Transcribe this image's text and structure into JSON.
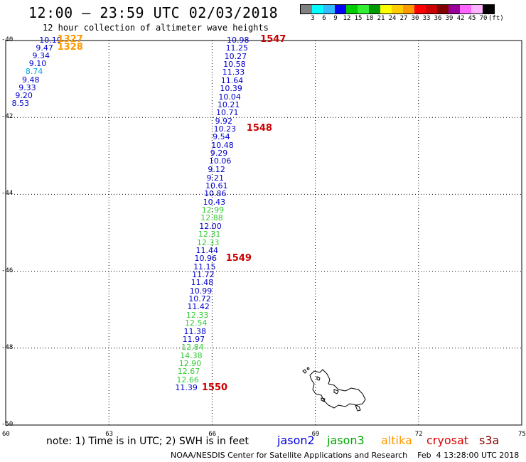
{
  "header": {
    "title": "12:00 — 23:59 UTC 02/03/2018",
    "subtitle": "12 hour collection of altimeter wave heights"
  },
  "scale": {
    "colors": [
      "#808080",
      "#00ffff",
      "#33bbff",
      "#0000ff",
      "#00cc00",
      "#33ee33",
      "#009900",
      "#ffff00",
      "#ffcc00",
      "#ff9900",
      "#ff0000",
      "#cc0000",
      "#800000",
      "#990099",
      "#ff66ff",
      "#ffb3ff",
      "#000000"
    ],
    "labels": [
      "3",
      "6",
      "9",
      "12",
      "15",
      "18",
      "21",
      "24",
      "27",
      "30",
      "33",
      "36",
      "39",
      "42",
      "45",
      "70",
      "(ft)"
    ]
  },
  "axes": {
    "lat_labels": [
      "-40",
      "-42",
      "-44",
      "-46",
      "-48",
      "-50"
    ],
    "lon_labels": [
      "60",
      "63",
      "66",
      "69",
      "72",
      "75"
    ]
  },
  "tracks": [
    {
      "sat": "jason2",
      "color": "#0000cc",
      "points": [
        {
          "lon": 61.1,
          "lat": -40.0,
          "v": "10.19"
        },
        {
          "lon": 61.0,
          "lat": -40.2,
          "v": "9.47"
        },
        {
          "lon": 60.9,
          "lat": -40.4,
          "v": "9.34"
        },
        {
          "lon": 60.8,
          "lat": -40.61,
          "v": "9.10"
        },
        {
          "lon": 60.7,
          "lat": -40.82,
          "v": "8.74",
          "c": "#00aadd"
        },
        {
          "lon": 60.6,
          "lat": -41.03,
          "v": "9.48"
        },
        {
          "lon": 60.5,
          "lat": -41.24,
          "v": "9.33"
        },
        {
          "lon": 60.4,
          "lat": -41.45,
          "v": "9.20"
        },
        {
          "lon": 60.3,
          "lat": -41.64,
          "v": "8.53"
        }
      ]
    },
    {
      "sat": "jason2",
      "color": "#0000cc",
      "points": [
        {
          "lon": 66.55,
          "lat": -40.0,
          "v": "10.98"
        },
        {
          "lon": 66.52,
          "lat": -40.21,
          "v": "11.25"
        },
        {
          "lon": 66.48,
          "lat": -40.42,
          "v": "10.27"
        },
        {
          "lon": 66.45,
          "lat": -40.63,
          "v": "10.58"
        },
        {
          "lon": 66.42,
          "lat": -40.84,
          "v": "11.33"
        },
        {
          "lon": 66.38,
          "lat": -41.05,
          "v": "11.64"
        },
        {
          "lon": 66.35,
          "lat": -41.26,
          "v": "10.39"
        },
        {
          "lon": 66.31,
          "lat": -41.47,
          "v": "10.04"
        },
        {
          "lon": 66.28,
          "lat": -41.68,
          "v": "10.21"
        },
        {
          "lon": 66.24,
          "lat": -41.89,
          "v": "10.71"
        },
        {
          "lon": 66.21,
          "lat": -42.1,
          "v": "9.92"
        },
        {
          "lon": 66.17,
          "lat": -42.31,
          "v": "10.23"
        },
        {
          "lon": 66.14,
          "lat": -42.52,
          "v": "9.54"
        },
        {
          "lon": 66.1,
          "lat": -42.73,
          "v": "10.48"
        },
        {
          "lon": 66.07,
          "lat": -42.94,
          "v": "9.29"
        },
        {
          "lon": 66.03,
          "lat": -43.15,
          "v": "10.06"
        },
        {
          "lon": 66.0,
          "lat": -43.37,
          "v": "9.12"
        },
        {
          "lon": 65.96,
          "lat": -43.58,
          "v": "9.21"
        },
        {
          "lon": 65.93,
          "lat": -43.79,
          "v": "10.61"
        },
        {
          "lon": 65.89,
          "lat": -44.0,
          "v": "10.86"
        },
        {
          "lon": 65.86,
          "lat": -44.21,
          "v": "10.43"
        },
        {
          "lon": 65.82,
          "lat": -44.42,
          "v": "12.99",
          "c": "#33cc33"
        },
        {
          "lon": 65.79,
          "lat": -44.63,
          "v": "12.88",
          "c": "#33cc33"
        },
        {
          "lon": 65.75,
          "lat": -44.84,
          "v": "12.00"
        },
        {
          "lon": 65.72,
          "lat": -45.05,
          "v": "12.31",
          "c": "#33cc33"
        },
        {
          "lon": 65.68,
          "lat": -45.26,
          "v": "12.33",
          "c": "#33cc33"
        },
        {
          "lon": 65.65,
          "lat": -45.47,
          "v": "11.44"
        },
        {
          "lon": 65.61,
          "lat": -45.68,
          "v": "10.96"
        },
        {
          "lon": 65.58,
          "lat": -45.89,
          "v": "11.15"
        },
        {
          "lon": 65.54,
          "lat": -46.1,
          "v": "11.72"
        },
        {
          "lon": 65.51,
          "lat": -46.31,
          "v": "11.48"
        },
        {
          "lon": 65.47,
          "lat": -46.52,
          "v": "10.99"
        },
        {
          "lon": 65.44,
          "lat": -46.73,
          "v": "10.72"
        },
        {
          "lon": 65.4,
          "lat": -46.94,
          "v": "11.42"
        },
        {
          "lon": 65.37,
          "lat": -47.15,
          "v": "12.33",
          "c": "#33cc33"
        },
        {
          "lon": 65.33,
          "lat": -47.36,
          "v": "12.54",
          "c": "#33cc33"
        },
        {
          "lon": 65.3,
          "lat": -47.57,
          "v": "11.38"
        },
        {
          "lon": 65.26,
          "lat": -47.78,
          "v": "11.97"
        },
        {
          "lon": 65.23,
          "lat": -47.99,
          "v": "12.84",
          "c": "#33cc33"
        },
        {
          "lon": 65.19,
          "lat": -48.2,
          "v": "14.38",
          "c": "#33cc33"
        },
        {
          "lon": 65.16,
          "lat": -48.41,
          "v": "12.90",
          "c": "#33cc33"
        },
        {
          "lon": 65.12,
          "lat": -48.62,
          "v": "12.67",
          "c": "#33cc33"
        },
        {
          "lon": 65.09,
          "lat": -48.83,
          "v": "12.66",
          "c": "#33cc33"
        },
        {
          "lon": 65.05,
          "lat": -49.04,
          "v": "11.39"
        }
      ]
    }
  ],
  "revs": [
    {
      "v": "1327",
      "lon": 61.5,
      "lat": -39.98,
      "c": "#ff9900"
    },
    {
      "v": "1328",
      "lon": 61.5,
      "lat": -40.18,
      "c": "#ff9900"
    },
    {
      "v": "1547",
      "lon": 67.4,
      "lat": -39.98,
      "c": "#cc0000"
    },
    {
      "v": "1548",
      "lon": 67.0,
      "lat": -42.3,
      "c": "#cc0000"
    },
    {
      "v": "1549",
      "lon": 66.4,
      "lat": -45.68,
      "c": "#cc0000"
    },
    {
      "v": "1550",
      "lon": 65.7,
      "lat": -49.03,
      "c": "#cc0000"
    }
  ],
  "note": "note: 1) Time is in UTC; 2) SWH is in feet",
  "satellites": [
    {
      "name": "jason2",
      "color": "#0000dd"
    },
    {
      "name": "jason3",
      "color": "#00aa00"
    },
    {
      "name": "altika",
      "color": "#ff9900"
    },
    {
      "name": "cryosat",
      "color": "#dd0000"
    },
    {
      "name": "s3a",
      "color": "#880000"
    }
  ],
  "footer": "NOAA/NESDIS Center for Satellite Applications and Research    Feb  4 13:28:00 UTC 2018"
}
